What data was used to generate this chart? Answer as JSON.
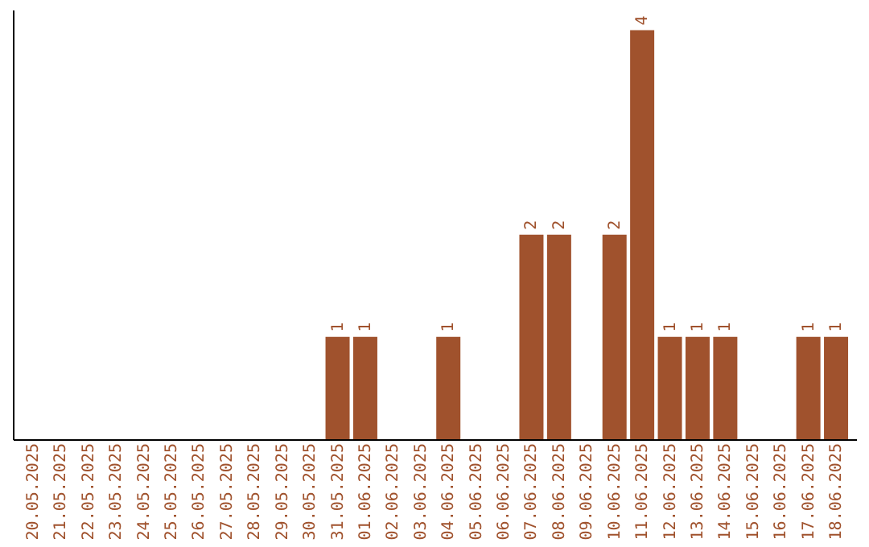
{
  "chart_data": {
    "type": "bar",
    "categories": [
      "20.05.2025",
      "21.05.2025",
      "22.05.2025",
      "23.05.2025",
      "24.05.2025",
      "25.05.2025",
      "26.05.2025",
      "27.05.2025",
      "28.05.2025",
      "29.05.2025",
      "30.05.2025",
      "31.05.2025",
      "01.06.2025",
      "02.06.2025",
      "03.06.2025",
      "04.06.2025",
      "05.06.2025",
      "06.06.2025",
      "07.06.2025",
      "08.06.2025",
      "09.06.2025",
      "10.06.2025",
      "11.06.2025",
      "12.06.2025",
      "13.06.2025",
      "14.06.2025",
      "15.06.2025",
      "16.06.2025",
      "17.06.2025",
      "18.06.2025"
    ],
    "values": [
      0,
      0,
      0,
      0,
      0,
      0,
      0,
      0,
      0,
      0,
      0,
      1,
      1,
      0,
      0,
      1,
      0,
      0,
      2,
      2,
      0,
      2,
      4,
      1,
      1,
      1,
      0,
      0,
      1,
      1
    ],
    "value_labels": [
      null,
      null,
      null,
      null,
      null,
      null,
      null,
      null,
      null,
      null,
      null,
      "1",
      "1",
      null,
      null,
      "1",
      null,
      null,
      "2",
      "2",
      null,
      "2",
      "4",
      "1",
      "1",
      "1",
      null,
      null,
      "1",
      "1"
    ],
    "color": "#a0522d",
    "ylim": [
      0,
      4.2
    ],
    "tick_labels": "x",
    "grid": false
  }
}
